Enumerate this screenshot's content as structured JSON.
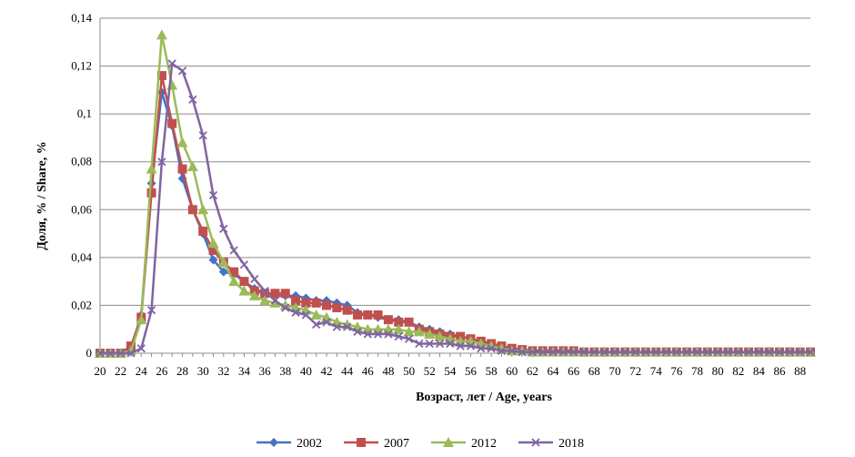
{
  "chart_data": {
    "type": "line",
    "title": "",
    "xlabel": "Возраст, лет / Age, years",
    "ylabel": "Доля, % / Share, %",
    "xlim": [
      20,
      89
    ],
    "ylim": [
      0,
      0.14
    ],
    "yticks": [
      "0",
      "0,02",
      "0,04",
      "0,06",
      "0,08",
      "0,1",
      "0,12",
      "0,14"
    ],
    "xtick_labels": [
      "20",
      "22",
      "24",
      "26",
      "28",
      "30",
      "32",
      "34",
      "36",
      "38",
      "40",
      "42",
      "44",
      "46",
      "48",
      "50",
      "52",
      "54",
      "56",
      "58",
      "60",
      "62",
      "64",
      "66",
      "68",
      "70",
      "72",
      "74",
      "76",
      "78",
      "80",
      "82",
      "84",
      "86",
      "88"
    ],
    "grid": "horizontal",
    "legend": "bottom",
    "x": [
      20,
      21,
      22,
      23,
      24,
      25,
      26,
      27,
      28,
      29,
      30,
      31,
      32,
      33,
      34,
      35,
      36,
      37,
      38,
      39,
      40,
      41,
      42,
      43,
      44,
      45,
      46,
      47,
      48,
      49,
      50,
      51,
      52,
      53,
      54,
      55,
      56,
      57,
      58,
      59,
      60,
      61,
      62,
      63,
      64,
      65,
      66,
      67,
      68,
      69,
      70,
      71,
      72,
      73,
      74,
      75,
      76,
      77,
      78,
      79,
      80,
      81,
      82,
      83,
      84,
      85,
      86,
      87,
      88,
      89
    ],
    "series": [
      {
        "name": "2002",
        "color": "#4472C4",
        "marker": "diamond",
        "values": [
          0,
          0,
          0,
          0.002,
          0.016,
          0.071,
          0.109,
          0.095,
          0.073,
          0.06,
          0.05,
          0.039,
          0.034,
          0.033,
          0.03,
          0.027,
          0.025,
          0.024,
          0.024,
          0.024,
          0.023,
          0.022,
          0.022,
          0.021,
          0.02,
          0.017,
          0.016,
          0.015,
          0.014,
          0.014,
          0.013,
          0.011,
          0.01,
          0.009,
          0.008,
          0.007,
          0.006,
          0.005,
          0.004,
          0.003,
          0.002,
          0.0015,
          0.001,
          0.001,
          0.001,
          0.001,
          0.001,
          0.0005,
          0.0005,
          0.0005,
          0.0005,
          0.0005,
          0.0005,
          0.0005,
          0.0005,
          0.0005,
          0.0005,
          0.0005,
          0.0005,
          0.0005,
          0.0005,
          0.0005,
          0.0005,
          0.0005,
          0.0005,
          0.0005,
          0.0005,
          0.0005,
          0.0005,
          0.0005
        ]
      },
      {
        "name": "2007",
        "color": "#C0504D",
        "marker": "square",
        "values": [
          0,
          0,
          0,
          0.003,
          0.015,
          0.067,
          0.116,
          0.096,
          0.077,
          0.06,
          0.051,
          0.043,
          0.038,
          0.034,
          0.03,
          0.026,
          0.025,
          0.025,
          0.025,
          0.022,
          0.021,
          0.021,
          0.02,
          0.019,
          0.018,
          0.016,
          0.016,
          0.016,
          0.014,
          0.013,
          0.013,
          0.01,
          0.009,
          0.008,
          0.007,
          0.007,
          0.006,
          0.005,
          0.004,
          0.003,
          0.002,
          0.0015,
          0.001,
          0.001,
          0.001,
          0.001,
          0.001,
          0.0005,
          0.0005,
          0.0005,
          0.0005,
          0.0005,
          0.0005,
          0.0005,
          0.0005,
          0.0005,
          0.0005,
          0.0005,
          0.0005,
          0.0005,
          0.0005,
          0.0005,
          0.0005,
          0.0005,
          0.0005,
          0.0005,
          0.0005,
          0.0005,
          0.0005,
          0.0005
        ]
      },
      {
        "name": "2012",
        "color": "#9BBB59",
        "marker": "triangle",
        "values": [
          0,
          0,
          0,
          0.001,
          0.014,
          0.077,
          0.133,
          0.112,
          0.088,
          0.078,
          0.06,
          0.046,
          0.038,
          0.03,
          0.026,
          0.024,
          0.022,
          0.021,
          0.02,
          0.019,
          0.018,
          0.016,
          0.015,
          0.013,
          0.012,
          0.011,
          0.01,
          0.01,
          0.01,
          0.01,
          0.009,
          0.009,
          0.008,
          0.007,
          0.006,
          0.005,
          0.005,
          0.004,
          0.003,
          0.002,
          0.001,
          0.001,
          0.0005,
          0.0005,
          0.0005,
          0.0005,
          0.0005,
          0.0005,
          0.0005,
          0.0005,
          0.0005,
          0.0005,
          0.0005,
          0.0005,
          0.0005,
          0.0005,
          0.0005,
          0.0005,
          0.0005,
          0.0005,
          0.0005,
          0.0005,
          0.0005,
          0.0005,
          0.0005,
          0.0005,
          0.0005,
          0.0005,
          0.0005,
          0.0005
        ]
      },
      {
        "name": "2018",
        "color": "#8064A2",
        "marker": "x",
        "values": [
          0,
          0,
          0,
          0,
          0.002,
          0.018,
          0.08,
          0.121,
          0.118,
          0.106,
          0.091,
          0.066,
          0.052,
          0.043,
          0.037,
          0.031,
          0.026,
          0.022,
          0.019,
          0.017,
          0.016,
          0.012,
          0.013,
          0.011,
          0.011,
          0.009,
          0.008,
          0.008,
          0.008,
          0.007,
          0.006,
          0.004,
          0.004,
          0.004,
          0.004,
          0.003,
          0.003,
          0.002,
          0.002,
          0.001,
          0.001,
          0.0005,
          0.0005,
          0.0005,
          0.0005,
          0.0005,
          0.0005,
          0.0005,
          0.0005,
          0.0005,
          0.0005,
          0.0005,
          0.0005,
          0.0005,
          0.0005,
          0.0005,
          0.0005,
          0.0005,
          0.0005,
          0.0005,
          0.0005,
          0.0005,
          0.0005,
          0.0005,
          0.0005,
          0.0005,
          0.0005,
          0.0005,
          0.0005,
          0.0005
        ]
      }
    ]
  }
}
